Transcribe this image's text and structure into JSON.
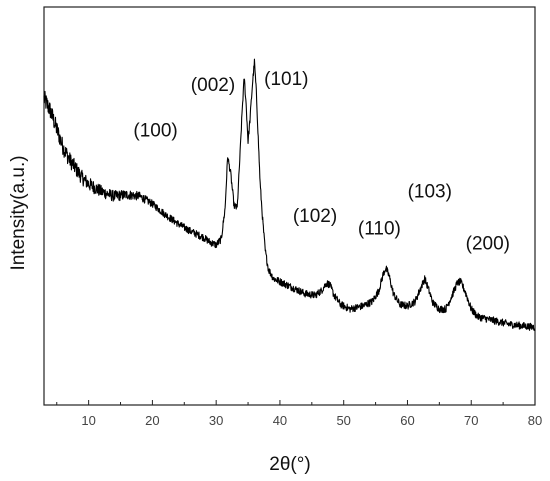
{
  "chart_data": {
    "type": "line",
    "title": "",
    "xlabel": "2θ(°)",
    "ylabel": "Intensity(a.u.)",
    "xlim": [
      3,
      80
    ],
    "xticks": [
      10,
      20,
      30,
      40,
      50,
      60,
      70,
      80
    ],
    "yticks_labeled": false,
    "grid": false,
    "legend": "none",
    "line_color": "#000000",
    "series": [
      {
        "x": [
          3,
          4,
          5,
          6,
          7,
          8,
          9,
          10,
          12,
          14,
          16,
          18,
          20,
          22,
          24,
          26,
          27,
          28,
          29,
          30,
          30.8,
          31.4,
          31.8,
          32.3,
          32.8,
          33.3,
          33.8,
          34.1,
          34.4,
          34.7,
          35.0,
          35.3,
          35.7,
          36.0,
          36.3,
          36.6,
          36.9,
          37.3,
          37.7,
          38.2,
          39.0,
          40,
          42,
          44,
          45.5,
          46.5,
          47.3,
          47.8,
          48.5,
          49.5,
          51,
          53,
          54.5,
          55.5,
          56.2,
          56.6,
          57.1,
          57.8,
          58.8,
          60,
          61.2,
          62.1,
          62.7,
          63.3,
          64,
          65,
          66,
          67,
          67.8,
          68.3,
          69,
          70,
          71,
          72,
          74,
          76,
          78,
          80
        ],
        "y": [
          0.88,
          0.84,
          0.78,
          0.72,
          0.68,
          0.65,
          0.62,
          0.6,
          0.575,
          0.56,
          0.565,
          0.56,
          0.535,
          0.5,
          0.47,
          0.445,
          0.435,
          0.425,
          0.41,
          0.4,
          0.42,
          0.52,
          0.69,
          0.63,
          0.53,
          0.52,
          0.72,
          0.85,
          0.95,
          0.86,
          0.74,
          0.81,
          0.93,
          1.0,
          0.9,
          0.75,
          0.6,
          0.48,
          0.38,
          0.32,
          0.29,
          0.28,
          0.26,
          0.24,
          0.235,
          0.25,
          0.275,
          0.27,
          0.235,
          0.205,
          0.19,
          0.2,
          0.215,
          0.25,
          0.305,
          0.325,
          0.3,
          0.24,
          0.205,
          0.2,
          0.215,
          0.26,
          0.29,
          0.255,
          0.21,
          0.19,
          0.19,
          0.235,
          0.275,
          0.28,
          0.25,
          0.19,
          0.165,
          0.16,
          0.15,
          0.14,
          0.135,
          0.13
        ]
      }
    ],
    "annotations": [
      {
        "text": "(100)",
        "x": 20.5,
        "y": 0.755
      },
      {
        "text": "(002)",
        "x": 29.5,
        "y": 0.905
      },
      {
        "text": "(101)",
        "x": 41.0,
        "y": 0.925
      },
      {
        "text": "(102)",
        "x": 45.5,
        "y": 0.475
      },
      {
        "text": "(110)",
        "x": 55.6,
        "y": 0.435
      },
      {
        "text": "(103)",
        "x": 63.5,
        "y": 0.555
      },
      {
        "text": "(200)",
        "x": 72.6,
        "y": 0.385
      }
    ]
  }
}
